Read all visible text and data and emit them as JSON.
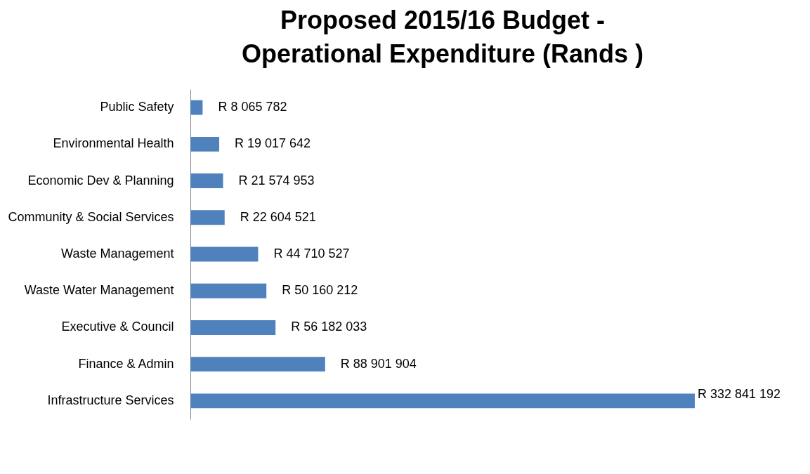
{
  "chart_data": {
    "type": "bar",
    "orientation": "horizontal",
    "title": "Proposed 2015/16 Budget -\nOperational Expenditure (Rands )",
    "categories": [
      "Public Safety",
      "Environmental Health",
      "Economic Dev & Planning",
      "Community & Social Services",
      "Waste Management",
      "Waste Water Management",
      "Executive & Council",
      "Finance & Admin",
      "Infrastructure Services"
    ],
    "values": [
      8065782,
      19017642,
      21574953,
      22604521,
      44710527,
      50160212,
      56182033,
      88901904,
      332841192
    ],
    "value_labels": [
      "R 8 065 782",
      "R 19 017 642",
      "R 21 574 953",
      "R 22 604 521",
      "R 44 710 527",
      "R 50 160 212",
      "R 56 182 033",
      "R 88 901 904",
      "R 332 841 192"
    ],
    "color": "#4f81bd"
  }
}
